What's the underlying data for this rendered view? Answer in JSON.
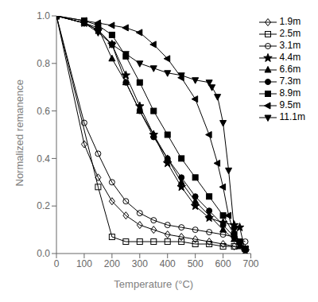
{
  "chart_data": {
    "type": "line",
    "xlabel": "Temperature (°C)",
    "ylabel": "Normalized remanence",
    "xlim": [
      0,
      700
    ],
    "ylim": [
      0,
      1.0
    ],
    "xticks": [
      0,
      100,
      200,
      300,
      400,
      500,
      600,
      700
    ],
    "yticks": [
      {
        "value": 0,
        "label": "0.0"
      },
      0.2,
      0.4,
      0.6,
      0.8,
      {
        "value": 1.0,
        "label": "1.0"
      }
    ],
    "grid": false,
    "legend": "upper right",
    "color": "#000000",
    "series": [
      {
        "name": "1.9m",
        "marker": "diamond_open",
        "x": [
          0,
          100,
          150,
          200,
          250,
          300,
          350,
          400,
          450,
          500,
          550,
          600,
          640,
          680
        ],
        "values": [
          1.0,
          0.46,
          0.32,
          0.22,
          0.16,
          0.12,
          0.1,
          0.08,
          0.07,
          0.06,
          0.05,
          0.04,
          0.03,
          0.02
        ]
      },
      {
        "name": "2.5m",
        "marker": "square_open",
        "x": [
          0,
          150,
          200,
          250,
          300,
          350,
          400,
          450,
          500,
          550,
          600,
          640,
          680
        ],
        "values": [
          1.0,
          0.28,
          0.07,
          0.05,
          0.05,
          0.05,
          0.05,
          0.05,
          0.04,
          0.04,
          0.03,
          0.03,
          0.02
        ]
      },
      {
        "name": "3.1m",
        "marker": "circle_open",
        "x": [
          0,
          100,
          150,
          200,
          250,
          300,
          350,
          400,
          450,
          500,
          550,
          600,
          640,
          680
        ],
        "values": [
          1.0,
          0.55,
          0.42,
          0.3,
          0.22,
          0.17,
          0.14,
          0.12,
          0.11,
          0.1,
          0.09,
          0.08,
          0.07,
          0.05
        ]
      },
      {
        "name": "4.4m",
        "marker": "star",
        "x": [
          0,
          100,
          150,
          200,
          250,
          300,
          350,
          400,
          450,
          500,
          550,
          600,
          640,
          660,
          680
        ],
        "values": [
          1.0,
          0.97,
          0.94,
          0.88,
          0.75,
          0.62,
          0.5,
          0.38,
          0.28,
          0.2,
          0.15,
          0.13,
          0.12,
          0.11,
          0.01
        ]
      },
      {
        "name": "6.6m",
        "marker": "triangle_up",
        "x": [
          0,
          100,
          150,
          200,
          250,
          300,
          350,
          400,
          450,
          500,
          550,
          600,
          640,
          660,
          680
        ],
        "values": [
          1.0,
          0.97,
          0.95,
          0.82,
          0.72,
          0.6,
          0.5,
          0.4,
          0.3,
          0.22,
          0.16,
          0.1,
          0.06,
          0.03,
          0.02
        ]
      },
      {
        "name": "7.3m",
        "marker": "circle",
        "x": [
          0,
          100,
          150,
          200,
          250,
          300,
          350,
          400,
          450,
          500,
          550,
          600,
          640,
          660,
          680
        ],
        "values": [
          1.0,
          0.97,
          0.94,
          0.88,
          0.72,
          0.6,
          0.49,
          0.4,
          0.32,
          0.24,
          0.18,
          0.12,
          0.07,
          0.05,
          0.02
        ]
      },
      {
        "name": "8.9m",
        "marker": "square",
        "x": [
          0,
          100,
          150,
          200,
          250,
          300,
          350,
          400,
          450,
          500,
          550,
          600,
          640,
          660,
          680
        ],
        "values": [
          1.0,
          0.98,
          0.96,
          0.92,
          0.83,
          0.72,
          0.6,
          0.5,
          0.4,
          0.32,
          0.24,
          0.16,
          0.08,
          0.05,
          0.02
        ]
      },
      {
        "name": "9.5m",
        "marker": "triangle_left",
        "x": [
          0,
          100,
          150,
          200,
          250,
          300,
          350,
          400,
          450,
          500,
          550,
          580,
          600,
          620,
          640,
          660,
          680
        ],
        "values": [
          1.0,
          0.98,
          0.97,
          0.96,
          0.95,
          0.93,
          0.88,
          0.82,
          0.74,
          0.65,
          0.5,
          0.38,
          0.28,
          0.16,
          0.08,
          0.04,
          0.02
        ]
      },
      {
        "name": "11.1m",
        "marker": "triangle_down",
        "x": [
          0,
          100,
          150,
          200,
          250,
          300,
          350,
          400,
          450,
          500,
          550,
          560,
          580,
          600,
          620,
          640,
          660,
          680
        ],
        "values": [
          1.0,
          0.97,
          0.93,
          0.88,
          0.84,
          0.8,
          0.78,
          0.76,
          0.75,
          0.73,
          0.72,
          0.7,
          0.66,
          0.55,
          0.35,
          0.1,
          0.04,
          0.02
        ]
      }
    ]
  }
}
